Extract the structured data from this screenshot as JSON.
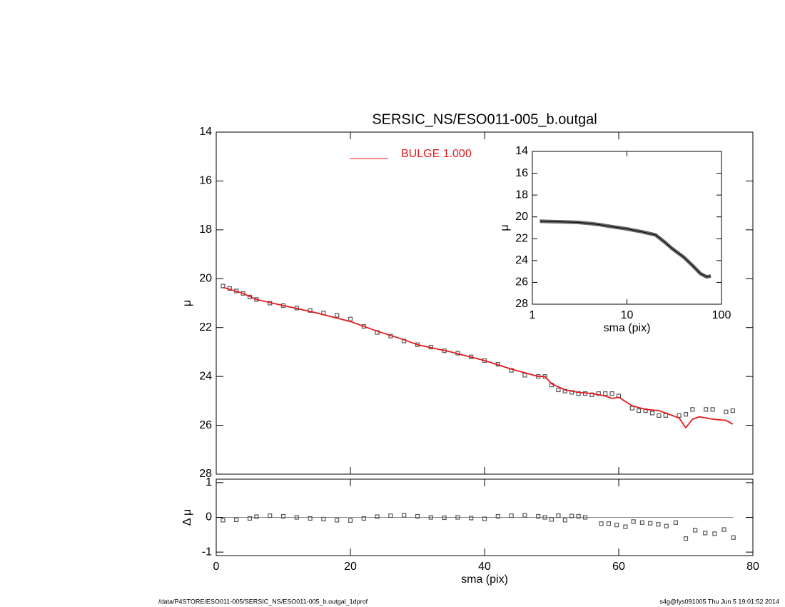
{
  "chart_data": [
    {
      "type": "line",
      "title": "SERSIC_NS/ESO011-005_b.outgal",
      "ylabel": "μ",
      "xlim": [
        0,
        80
      ],
      "xticks": [
        0,
        20,
        40,
        60,
        80
      ],
      "show_xtick_labels": false,
      "ylim": [
        14,
        28
      ],
      "y_inverted": true,
      "yticks": [
        14,
        16,
        18,
        20,
        22,
        24,
        26,
        28
      ],
      "legend": "top-center",
      "series": [
        {
          "color": "#555555",
          "style": "points",
          "x": [
            1,
            2,
            3,
            4,
            5,
            6,
            8,
            10,
            12,
            14,
            16,
            18,
            20,
            22,
            24,
            26,
            28,
            30,
            32,
            34,
            36,
            38,
            40,
            42,
            44,
            46,
            48,
            49,
            50,
            51,
            52,
            53,
            54,
            55,
            56,
            57,
            58,
            59,
            60,
            62,
            63,
            64,
            65,
            66,
            67,
            69,
            70,
            71,
            73,
            74,
            76,
            77
          ],
          "values": [
            20.3,
            20.4,
            20.5,
            20.6,
            20.75,
            20.85,
            21.0,
            21.1,
            21.2,
            21.3,
            21.4,
            21.5,
            21.65,
            21.95,
            22.2,
            22.35,
            22.55,
            22.7,
            22.8,
            22.95,
            23.05,
            23.2,
            23.35,
            23.5,
            23.75,
            23.95,
            24.0,
            24.0,
            24.35,
            24.55,
            24.6,
            24.65,
            24.7,
            24.7,
            24.75,
            24.7,
            24.7,
            24.7,
            24.8,
            25.3,
            25.4,
            25.4,
            25.5,
            25.6,
            25.6,
            25.6,
            25.55,
            25.35,
            25.35,
            25.35,
            25.45,
            25.4
          ]
        },
        {
          "name": "BULGE  1.000",
          "color": "#e31a1c",
          "style": "line",
          "x": [
            1,
            4,
            6,
            10,
            15,
            20,
            24,
            28,
            30,
            35,
            40,
            44,
            48,
            49,
            50,
            52,
            54,
            56,
            58,
            59,
            60,
            62,
            64,
            66,
            68,
            69,
            70,
            71,
            72,
            74,
            76,
            77
          ],
          "values": [
            20.35,
            20.6,
            20.85,
            21.1,
            21.4,
            21.75,
            22.15,
            22.5,
            22.7,
            23.0,
            23.35,
            23.7,
            24.0,
            24.0,
            24.3,
            24.55,
            24.65,
            24.7,
            24.8,
            24.9,
            24.85,
            25.2,
            25.35,
            25.4,
            25.6,
            25.7,
            26.1,
            25.75,
            25.65,
            25.75,
            25.8,
            25.95
          ]
        }
      ]
    },
    {
      "type": "line",
      "xlabel": "sma (pix)",
      "ylabel": "μ",
      "xscale": "log",
      "xlim": [
        1,
        100
      ],
      "xticks": [
        1,
        10,
        100
      ],
      "ylim": [
        14,
        28
      ],
      "y_inverted": true,
      "yticks": [
        14,
        16,
        18,
        20,
        22,
        24,
        26,
        28
      ],
      "series": [
        {
          "color": "#666666",
          "style": "thick-line",
          "x": [
            1.2,
            2,
            3,
            4,
            5,
            7,
            10,
            15,
            20,
            25,
            30,
            40,
            50,
            60,
            70,
            77
          ],
          "values": [
            20.4,
            20.45,
            20.5,
            20.6,
            20.7,
            20.9,
            21.1,
            21.4,
            21.65,
            22.3,
            22.9,
            23.7,
            24.5,
            25.2,
            25.5,
            25.4
          ]
        }
      ]
    },
    {
      "type": "scatter",
      "xlabel": "sma (pix)",
      "ylabel": "Δ μ",
      "xlim": [
        0,
        80
      ],
      "xticks": [
        0,
        20,
        40,
        60,
        80
      ],
      "ylim": [
        -1.1,
        1.1
      ],
      "yticks": [
        -1,
        0,
        1
      ],
      "reference_line": 0,
      "series": [
        {
          "color": "#555555",
          "style": "points",
          "x": [
            1,
            3,
            5,
            6,
            8,
            10,
            12,
            14,
            16,
            18,
            20,
            22,
            24,
            26,
            28,
            30,
            32,
            34,
            36,
            38,
            40,
            42,
            44,
            46,
            48,
            49,
            50,
            51,
            52,
            53,
            54,
            55,
            57.4,
            58.5,
            59.7,
            61,
            62.2,
            63.5,
            64.7,
            65.9,
            67.1,
            68.5,
            70,
            71.4,
            72.9,
            74.3,
            75.7,
            77.1
          ],
          "values": [
            -0.08,
            -0.07,
            -0.03,
            0.02,
            0.05,
            0.03,
            0,
            -0.03,
            -0.05,
            -0.08,
            -0.09,
            -0.03,
            0.02,
            0.05,
            0.06,
            0.03,
            0,
            -0.01,
            0,
            -0.02,
            -0.04,
            0.03,
            0.05,
            0.06,
            0.03,
            0,
            -0.06,
            0.05,
            -0.08,
            0.04,
            0.03,
            0,
            -0.18,
            -0.18,
            -0.22,
            -0.27,
            -0.12,
            -0.15,
            -0.17,
            -0.2,
            -0.25,
            -0.15,
            -0.61,
            -0.37,
            -0.45,
            -0.47,
            -0.35,
            -0.58
          ]
        }
      ]
    }
  ],
  "footer": {
    "left": "/data/P4STORE/ESO011-005/SERSIC_NS/ESO011-005_b.outgal_1dprof",
    "right": "s4g@fys091005  Thu Jun  5 19:01:52 2014"
  }
}
